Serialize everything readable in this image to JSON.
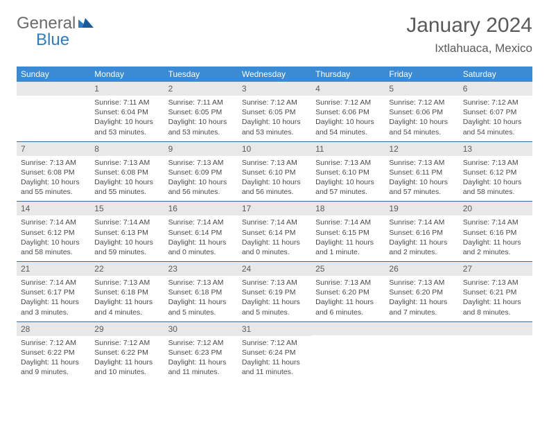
{
  "logo": {
    "part1": "General",
    "part2": "Blue"
  },
  "title": "January 2024",
  "location": "Ixtlahuaca, Mexico",
  "colors": {
    "header_bg": "#3a8bd4",
    "header_text": "#ffffff",
    "daynum_bg": "#e8e8e8",
    "row_divider": "#3a6a9a",
    "body_text": "#4a4a4a",
    "logo_gray": "#6b6b6b",
    "logo_blue": "#2c7bc4"
  },
  "typography": {
    "title_fontsize": 30,
    "location_fontsize": 17,
    "dayheader_fontsize": 12,
    "cell_fontsize": 10.5
  },
  "day_headers": [
    "Sunday",
    "Monday",
    "Tuesday",
    "Wednesday",
    "Thursday",
    "Friday",
    "Saturday"
  ],
  "weeks": [
    [
      {
        "num": "",
        "sunrise": "",
        "sunset": "",
        "daylight": ""
      },
      {
        "num": "1",
        "sunrise": "Sunrise: 7:11 AM",
        "sunset": "Sunset: 6:04 PM",
        "daylight": "Daylight: 10 hours and 53 minutes."
      },
      {
        "num": "2",
        "sunrise": "Sunrise: 7:11 AM",
        "sunset": "Sunset: 6:05 PM",
        "daylight": "Daylight: 10 hours and 53 minutes."
      },
      {
        "num": "3",
        "sunrise": "Sunrise: 7:12 AM",
        "sunset": "Sunset: 6:05 PM",
        "daylight": "Daylight: 10 hours and 53 minutes."
      },
      {
        "num": "4",
        "sunrise": "Sunrise: 7:12 AM",
        "sunset": "Sunset: 6:06 PM",
        "daylight": "Daylight: 10 hours and 54 minutes."
      },
      {
        "num": "5",
        "sunrise": "Sunrise: 7:12 AM",
        "sunset": "Sunset: 6:06 PM",
        "daylight": "Daylight: 10 hours and 54 minutes."
      },
      {
        "num": "6",
        "sunrise": "Sunrise: 7:12 AM",
        "sunset": "Sunset: 6:07 PM",
        "daylight": "Daylight: 10 hours and 54 minutes."
      }
    ],
    [
      {
        "num": "7",
        "sunrise": "Sunrise: 7:13 AM",
        "sunset": "Sunset: 6:08 PM",
        "daylight": "Daylight: 10 hours and 55 minutes."
      },
      {
        "num": "8",
        "sunrise": "Sunrise: 7:13 AM",
        "sunset": "Sunset: 6:08 PM",
        "daylight": "Daylight: 10 hours and 55 minutes."
      },
      {
        "num": "9",
        "sunrise": "Sunrise: 7:13 AM",
        "sunset": "Sunset: 6:09 PM",
        "daylight": "Daylight: 10 hours and 56 minutes."
      },
      {
        "num": "10",
        "sunrise": "Sunrise: 7:13 AM",
        "sunset": "Sunset: 6:10 PM",
        "daylight": "Daylight: 10 hours and 56 minutes."
      },
      {
        "num": "11",
        "sunrise": "Sunrise: 7:13 AM",
        "sunset": "Sunset: 6:10 PM",
        "daylight": "Daylight: 10 hours and 57 minutes."
      },
      {
        "num": "12",
        "sunrise": "Sunrise: 7:13 AM",
        "sunset": "Sunset: 6:11 PM",
        "daylight": "Daylight: 10 hours and 57 minutes."
      },
      {
        "num": "13",
        "sunrise": "Sunrise: 7:13 AM",
        "sunset": "Sunset: 6:12 PM",
        "daylight": "Daylight: 10 hours and 58 minutes."
      }
    ],
    [
      {
        "num": "14",
        "sunrise": "Sunrise: 7:14 AM",
        "sunset": "Sunset: 6:12 PM",
        "daylight": "Daylight: 10 hours and 58 minutes."
      },
      {
        "num": "15",
        "sunrise": "Sunrise: 7:14 AM",
        "sunset": "Sunset: 6:13 PM",
        "daylight": "Daylight: 10 hours and 59 minutes."
      },
      {
        "num": "16",
        "sunrise": "Sunrise: 7:14 AM",
        "sunset": "Sunset: 6:14 PM",
        "daylight": "Daylight: 11 hours and 0 minutes."
      },
      {
        "num": "17",
        "sunrise": "Sunrise: 7:14 AM",
        "sunset": "Sunset: 6:14 PM",
        "daylight": "Daylight: 11 hours and 0 minutes."
      },
      {
        "num": "18",
        "sunrise": "Sunrise: 7:14 AM",
        "sunset": "Sunset: 6:15 PM",
        "daylight": "Daylight: 11 hours and 1 minute."
      },
      {
        "num": "19",
        "sunrise": "Sunrise: 7:14 AM",
        "sunset": "Sunset: 6:16 PM",
        "daylight": "Daylight: 11 hours and 2 minutes."
      },
      {
        "num": "20",
        "sunrise": "Sunrise: 7:14 AM",
        "sunset": "Sunset: 6:16 PM",
        "daylight": "Daylight: 11 hours and 2 minutes."
      }
    ],
    [
      {
        "num": "21",
        "sunrise": "Sunrise: 7:14 AM",
        "sunset": "Sunset: 6:17 PM",
        "daylight": "Daylight: 11 hours and 3 minutes."
      },
      {
        "num": "22",
        "sunrise": "Sunrise: 7:13 AM",
        "sunset": "Sunset: 6:18 PM",
        "daylight": "Daylight: 11 hours and 4 minutes."
      },
      {
        "num": "23",
        "sunrise": "Sunrise: 7:13 AM",
        "sunset": "Sunset: 6:18 PM",
        "daylight": "Daylight: 11 hours and 5 minutes."
      },
      {
        "num": "24",
        "sunrise": "Sunrise: 7:13 AM",
        "sunset": "Sunset: 6:19 PM",
        "daylight": "Daylight: 11 hours and 5 minutes."
      },
      {
        "num": "25",
        "sunrise": "Sunrise: 7:13 AM",
        "sunset": "Sunset: 6:20 PM",
        "daylight": "Daylight: 11 hours and 6 minutes."
      },
      {
        "num": "26",
        "sunrise": "Sunrise: 7:13 AM",
        "sunset": "Sunset: 6:20 PM",
        "daylight": "Daylight: 11 hours and 7 minutes."
      },
      {
        "num": "27",
        "sunrise": "Sunrise: 7:13 AM",
        "sunset": "Sunset: 6:21 PM",
        "daylight": "Daylight: 11 hours and 8 minutes."
      }
    ],
    [
      {
        "num": "28",
        "sunrise": "Sunrise: 7:12 AM",
        "sunset": "Sunset: 6:22 PM",
        "daylight": "Daylight: 11 hours and 9 minutes."
      },
      {
        "num": "29",
        "sunrise": "Sunrise: 7:12 AM",
        "sunset": "Sunset: 6:22 PM",
        "daylight": "Daylight: 11 hours and 10 minutes."
      },
      {
        "num": "30",
        "sunrise": "Sunrise: 7:12 AM",
        "sunset": "Sunset: 6:23 PM",
        "daylight": "Daylight: 11 hours and 11 minutes."
      },
      {
        "num": "31",
        "sunrise": "Sunrise: 7:12 AM",
        "sunset": "Sunset: 6:24 PM",
        "daylight": "Daylight: 11 hours and 11 minutes."
      },
      {
        "num": "",
        "sunrise": "",
        "sunset": "",
        "daylight": ""
      },
      {
        "num": "",
        "sunrise": "",
        "sunset": "",
        "daylight": ""
      },
      {
        "num": "",
        "sunrise": "",
        "sunset": "",
        "daylight": ""
      }
    ]
  ]
}
